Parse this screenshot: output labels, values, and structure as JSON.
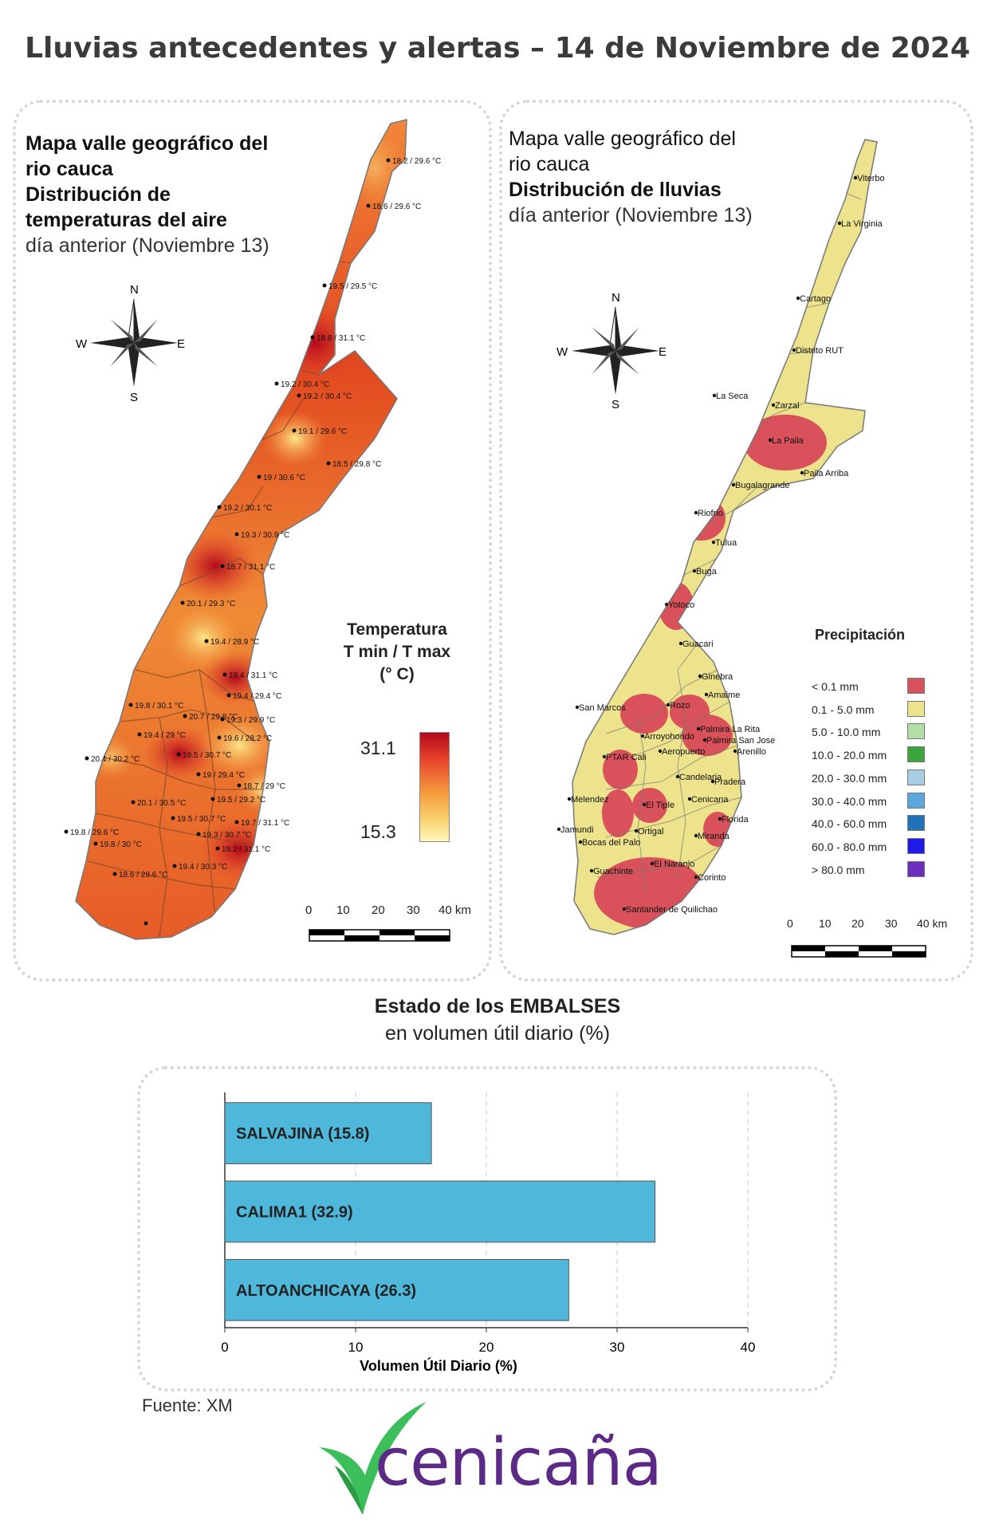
{
  "title": "Lluvias antecedentes y alertas – 14 de Noviembre de 2024",
  "left_map": {
    "heading_bold": [
      "Mapa valle geográfico del",
      "rio cauca",
      "Distribución de",
      "temperaturas del aire"
    ],
    "heading_normal": "día anterior (Noviembre 13)",
    "compass": {
      "n": "N",
      "s": "S",
      "e": "E",
      "w": "W"
    },
    "legend_title": [
      "Temperatura",
      "T min / T max",
      "(° C)"
    ],
    "legend_max": "31.1",
    "legend_min": "15.3",
    "scale_labels": [
      "0",
      "10",
      "20",
      "30",
      "40 km"
    ],
    "station_labels": [
      "18.2 / 29.6 °C",
      "18.6 / 29.6 °C",
      "19.5 / 29.5 °C",
      "18.8 / 31.1 °C",
      "19.2 / 30.4 °C",
      "19.2 / 30.4 °C",
      "19.1 / 29.6 °C",
      "18.5 / 29.8 °C",
      "19 / 30.6 °C",
      "19.2 / 30.1 °C",
      "19.3 / 30.9 °C",
      "18.7 / 31.1 °C",
      "20.1 / 29.3 °C",
      "19.4 / 28.9 °C",
      "19.4 / 31.1 °C",
      "19.4 / 29.4 °C",
      "19.8 / 30.1 °C",
      "20.7 / 29.8 °C",
      "19.3 / 29.9 °C",
      "19.4 / 29 °C",
      "19.6 / 28.2 °C",
      "19.5 / 30.7 °C",
      "20.4 / 30.2 °C",
      "19 / 29.4 °C",
      "18.7 / 29 °C",
      "20.1 / 30.5 °C",
      "19.5 / 29.2 °C",
      "19.5 / 30.7 °C",
      "19.7 / 31.1 °C",
      "19.8 / 29.6 °C",
      "19.3 / 30.7 °C",
      "19.8 / 30 °C",
      "19.2 / 31.1 °C",
      "18.6 / 29.6 °C",
      "19.4 / 30.3 °C"
    ]
  },
  "right_map": {
    "heading_normal_top": [
      "Mapa valle geográfico del",
      "rio cauca"
    ],
    "heading_bold": "Distribución de lluvias",
    "heading_normal": "día anterior (Noviembre 13)",
    "compass": {
      "n": "N",
      "s": "S",
      "e": "E",
      "w": "W"
    },
    "place_labels": [
      "Viterbo",
      "La Virginia",
      "Cartago",
      "Distrito RUT",
      "La Seca",
      "Zarzal",
      "La Paila",
      "Paila Arriba",
      "Bugalagrande",
      "Riofrio",
      "Tulua",
      "Buga",
      "Yotoco",
      "Guacari",
      "Ginebra",
      "Amaime",
      "San Marcos",
      "Rozo",
      "Palmira La Rita",
      "Arroyohondo",
      "Palmira San Jose",
      "Aeropuerto",
      "Arenillo",
      "PTAR Cali",
      "Candelaria",
      "Pradera",
      "Melendez",
      "El Tiple",
      "Cenicana",
      "Florida",
      "Jamundi",
      "Bocas del Palo",
      "Ortigal",
      "Miranda",
      "Guachinte",
      "El Naranjo",
      "Corinto",
      "Santander de Quilichao"
    ],
    "precip_title": "Precipitación",
    "precip_classes": [
      {
        "label": "< 0.1 mm",
        "color": "#d9515a"
      },
      {
        "label": "0.1 - 5.0 mm",
        "color": "#ede38c"
      },
      {
        "label": "5.0 - 10.0 mm",
        "color": "#b2dfa3"
      },
      {
        "label": "10.0 - 20.0 mm",
        "color": "#3aa63a"
      },
      {
        "label": "20.0 - 30.0 mm",
        "color": "#a9cde5"
      },
      {
        "label": "30.0 - 40.0 mm",
        "color": "#5aa6dd"
      },
      {
        "label": "40.0 - 60.0 mm",
        "color": "#2272b9"
      },
      {
        "label": "60.0 - 80.0 mm",
        "color": "#1f1ae8"
      },
      {
        "label": "> 80.0 mm",
        "color": "#6a2fbf"
      }
    ],
    "scale_labels": [
      "0",
      "10",
      "20",
      "30",
      "40 km"
    ]
  },
  "embalses": {
    "title_bold": "Estado de los EMBALSES",
    "title_normal": "en volumen útil diario (%)"
  },
  "chart_data": {
    "type": "bar",
    "orientation": "horizontal",
    "categories": [
      "SALVAJINA (15.8)",
      "CALIMA1 (32.9)",
      "ALTOANCHICAYA (26.3)"
    ],
    "values": [
      15.8,
      32.9,
      26.3
    ],
    "xlabel": "Volumen Útil Diario (%)",
    "xlim": [
      0,
      40
    ],
    "xticks": [
      "0",
      "10",
      "20",
      "30",
      "40"
    ],
    "bar_color": "#4fb7d9",
    "grid": true
  },
  "source": "Fuente: XM",
  "logo": {
    "text": "cenicaña",
    "text_color": "#5c2a86",
    "mark_color": "#3cbf5a"
  }
}
